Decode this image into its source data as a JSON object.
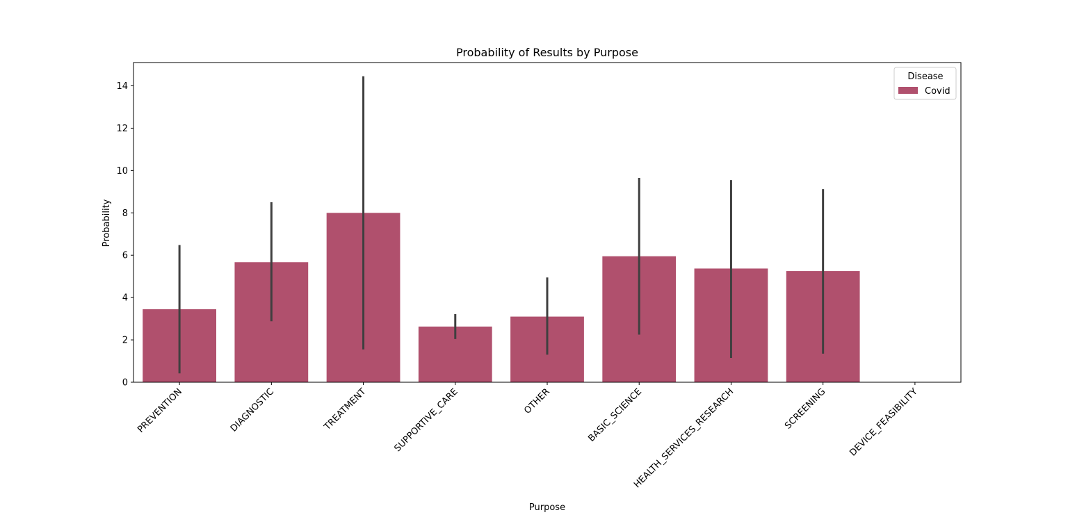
{
  "chart_data": {
    "type": "bar",
    "title": "Probability of Results by Purpose",
    "xlabel": "Purpose",
    "ylabel": "Probability",
    "ylim": [
      0,
      15.1
    ],
    "yticks": [
      0,
      2,
      4,
      6,
      8,
      10,
      12,
      14
    ],
    "categories": [
      "PREVENTION",
      "DIAGNOSTIC",
      "TREATMENT",
      "SUPPORTIVE_CARE",
      "OTHER",
      "BASIC_SCIENCE",
      "HEALTH_SERVICES_RESEARCH",
      "SCREENING",
      "DEVICE_FEASIBILITY"
    ],
    "series": [
      {
        "name": "Covid",
        "color": "#b0506d",
        "values": [
          3.45,
          5.67,
          8.0,
          2.63,
          3.1,
          5.95,
          5.37,
          5.25,
          0
        ],
        "error_low": [
          0.42,
          2.88,
          1.55,
          2.04,
          1.3,
          2.25,
          1.15,
          1.35,
          null
        ],
        "error_high": [
          6.48,
          8.5,
          14.45,
          3.22,
          4.95,
          9.65,
          9.55,
          9.12,
          null
        ]
      }
    ],
    "errorbar_color": "#3f3f3f",
    "legend": {
      "title": "Disease",
      "placement": "top-right"
    },
    "grid": false
  }
}
